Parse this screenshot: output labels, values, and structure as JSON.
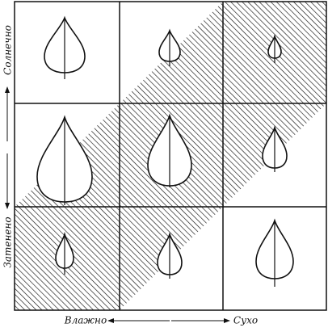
{
  "axes": {
    "vertical": {
      "top": "Солнечно",
      "bottom": "Затенено"
    },
    "horizontal": {
      "left": "Влажно",
      "right": "Сухо"
    }
  }
}
